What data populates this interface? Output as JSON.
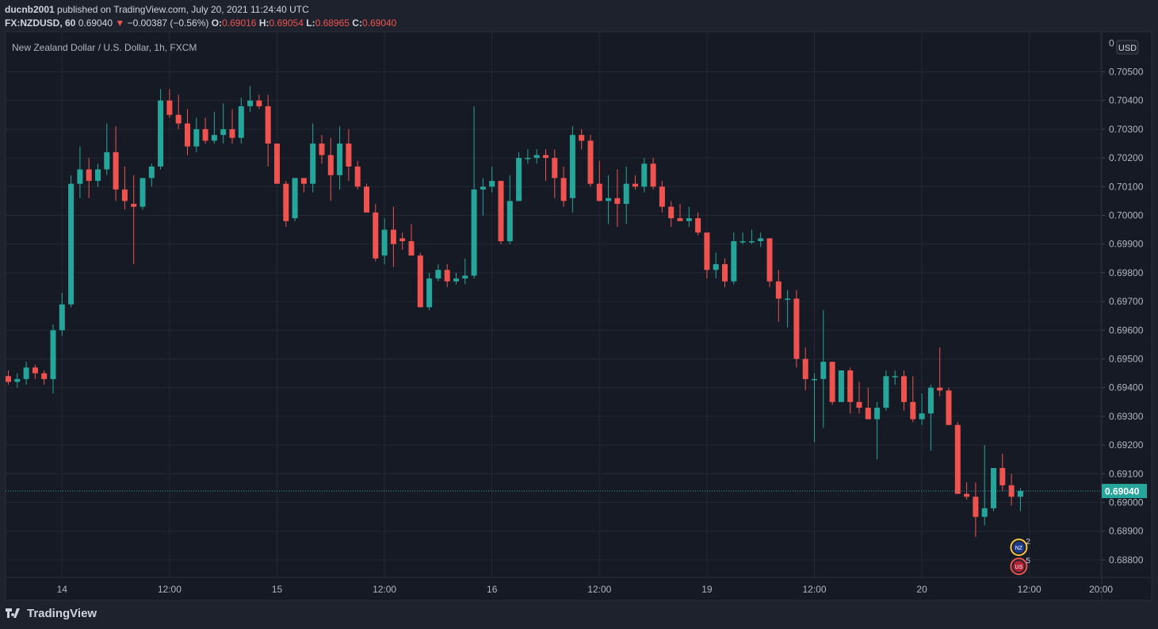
{
  "header": {
    "publisher": "ducnb2001",
    "published_text": "published on TradingView.com, July 20, 2021 11:24:40 UTC",
    "symbol": "FX:NZDUSD, 60",
    "last": "0.69040",
    "change": "−0.00387 (−0.56%)",
    "open_label": "O:",
    "open": "0.69016",
    "high_label": "H:",
    "high": "0.69054",
    "low_label": "L:",
    "low": "0.68965",
    "close_label": "C:",
    "close": "0.69040"
  },
  "brand": "TradingView",
  "chart_data": {
    "type": "candlestick",
    "title": "New Zealand Dollar / U.S. Dollar, 1h, FXCM",
    "currency": "USD",
    "current_price": 0.6904,
    "current_price_label": "0.69040",
    "y_range": [
      0.6875,
      0.7066
    ],
    "y_ticks": [
      "0.68800",
      "0.68900",
      "0.69000",
      "0.69100",
      "0.69200",
      "0.69300",
      "0.69400",
      "0.69500",
      "0.69600",
      "0.69700",
      "0.69800",
      "0.69900",
      "0.70000",
      "0.70100",
      "0.70200",
      "0.70300",
      "0.70400",
      "0.70500"
    ],
    "top_tick": "0",
    "x_ticks": [
      {
        "i": 6,
        "label": "14"
      },
      {
        "i": 18,
        "label": "12:00"
      },
      {
        "i": 30,
        "label": "15"
      },
      {
        "i": 42,
        "label": "12:00"
      },
      {
        "i": 54,
        "label": "16"
      },
      {
        "i": 66,
        "label": "12:00"
      },
      {
        "i": 78,
        "label": "19"
      },
      {
        "i": 90,
        "label": "12:00"
      },
      {
        "i": 102,
        "label": "20"
      },
      {
        "i": 114,
        "label": "12:00"
      },
      {
        "i": 122,
        "label": "20:00"
      }
    ],
    "x_bars_visible": 124,
    "grid": true,
    "up_color": "#26a69a",
    "down_color": "#ef5350",
    "candles": [
      [
        0.6944,
        0.6946,
        0.6941,
        0.6942
      ],
      [
        0.6942,
        0.6945,
        0.694,
        0.6943
      ],
      [
        0.6943,
        0.6949,
        0.6941,
        0.6947
      ],
      [
        0.6947,
        0.6948,
        0.6943,
        0.6945
      ],
      [
        0.6945,
        0.6946,
        0.6941,
        0.6943
      ],
      [
        0.6943,
        0.6962,
        0.6938,
        0.696
      ],
      [
        0.696,
        0.6973,
        0.6958,
        0.6969
      ],
      [
        0.6969,
        0.7014,
        0.6968,
        0.7011
      ],
      [
        0.7011,
        0.7024,
        0.7006,
        0.7016
      ],
      [
        0.7016,
        0.702,
        0.7006,
        0.7012
      ],
      [
        0.7012,
        0.7018,
        0.701,
        0.7016
      ],
      [
        0.7016,
        0.7032,
        0.7014,
        0.7022
      ],
      [
        0.7022,
        0.7031,
        0.7005,
        0.7009
      ],
      [
        0.7009,
        0.7017,
        0.7002,
        0.7005
      ],
      [
        0.7004,
        0.7014,
        0.6983,
        0.7003
      ],
      [
        0.7003,
        0.7013,
        0.7002,
        0.7013
      ],
      [
        0.7013,
        0.7018,
        0.701,
        0.7017
      ],
      [
        0.7017,
        0.7044,
        0.7016,
        0.704
      ],
      [
        0.704,
        0.7044,
        0.7034,
        0.7035
      ],
      [
        0.7035,
        0.7042,
        0.703,
        0.7032
      ],
      [
        0.7032,
        0.7037,
        0.7021,
        0.7024
      ],
      [
        0.7024,
        0.7034,
        0.7022,
        0.703
      ],
      [
        0.703,
        0.7034,
        0.7025,
        0.7026
      ],
      [
        0.7026,
        0.7036,
        0.7025,
        0.7028
      ],
      [
        0.7028,
        0.7039,
        0.7025,
        0.703
      ],
      [
        0.703,
        0.7037,
        0.7025,
        0.7027
      ],
      [
        0.7027,
        0.7041,
        0.7025,
        0.7038
      ],
      [
        0.7038,
        0.7045,
        0.7036,
        0.704
      ],
      [
        0.704,
        0.7042,
        0.7037,
        0.7038
      ],
      [
        0.7038,
        0.7042,
        0.7017,
        0.7025
      ],
      [
        0.7025,
        0.7025,
        0.7012,
        0.7011
      ],
      [
        0.7011,
        0.7012,
        0.6996,
        0.6998
      ],
      [
        0.6999,
        0.7013,
        0.6998,
        0.7013
      ],
      [
        0.7013,
        0.7013,
        0.7008,
        0.7011
      ],
      [
        0.7011,
        0.7032,
        0.7008,
        0.7025
      ],
      [
        0.7025,
        0.7028,
        0.7018,
        0.7021
      ],
      [
        0.7021,
        0.7027,
        0.7005,
        0.7014
      ],
      [
        0.7014,
        0.7031,
        0.7009,
        0.7025
      ],
      [
        0.7025,
        0.703,
        0.7012,
        0.7017
      ],
      [
        0.7017,
        0.7019,
        0.7009,
        0.701
      ],
      [
        0.701,
        0.7011,
        0.7002,
        0.7001
      ],
      [
        0.7001,
        0.7004,
        0.6984,
        0.6985
      ],
      [
        0.6986,
        0.6999,
        0.6983,
        0.6995
      ],
      [
        0.6995,
        0.7003,
        0.6982,
        0.699
      ],
      [
        0.6992,
        0.6994,
        0.6988,
        0.6991
      ],
      [
        0.6991,
        0.6997,
        0.6986,
        0.6986
      ],
      [
        0.6986,
        0.6987,
        0.6968,
        0.6968
      ],
      [
        0.6968,
        0.698,
        0.6967,
        0.6978
      ],
      [
        0.6978,
        0.6983,
        0.6977,
        0.6981
      ],
      [
        0.6981,
        0.6983,
        0.6975,
        0.6977
      ],
      [
        0.6977,
        0.698,
        0.6976,
        0.6978
      ],
      [
        0.6978,
        0.6985,
        0.6976,
        0.6979
      ],
      [
        0.6979,
        0.7038,
        0.6978,
        0.7009
      ],
      [
        0.7009,
        0.7013,
        0.7,
        0.701
      ],
      [
        0.701,
        0.7017,
        0.7008,
        0.7012
      ],
      [
        0.7012,
        0.7012,
        0.699,
        0.6991
      ],
      [
        0.6991,
        0.7014,
        0.699,
        0.7005
      ],
      [
        0.7005,
        0.7022,
        0.7005,
        0.702
      ],
      [
        0.702,
        0.7023,
        0.7018,
        0.702
      ],
      [
        0.702,
        0.7023,
        0.7018,
        0.7021
      ],
      [
        0.7021,
        0.7023,
        0.7012,
        0.702
      ],
      [
        0.702,
        0.7023,
        0.7006,
        0.7013
      ],
      [
        0.7013,
        0.7017,
        0.7003,
        0.7005
      ],
      [
        0.7006,
        0.7031,
        0.7001,
        0.7028
      ],
      [
        0.7028,
        0.703,
        0.7023,
        0.7026
      ],
      [
        0.7026,
        0.7028,
        0.701,
        0.7011
      ],
      [
        0.7011,
        0.7019,
        0.7005,
        0.7005
      ],
      [
        0.7005,
        0.7014,
        0.6997,
        0.7006
      ],
      [
        0.7006,
        0.7016,
        0.6996,
        0.7004
      ],
      [
        0.7004,
        0.7017,
        0.6997,
        0.7011
      ],
      [
        0.7011,
        0.7014,
        0.7009,
        0.701
      ],
      [
        0.701,
        0.702,
        0.7008,
        0.7018
      ],
      [
        0.7018,
        0.702,
        0.7009,
        0.701
      ],
      [
        0.701,
        0.7012,
        0.7001,
        0.7003
      ],
      [
        0.7003,
        0.7005,
        0.6996,
        0.6999
      ],
      [
        0.6999,
        0.7004,
        0.6998,
        0.6998
      ],
      [
        0.6998,
        0.7003,
        0.6996,
        0.6999
      ],
      [
        0.6999,
        0.7001,
        0.6993,
        0.6994
      ],
      [
        0.6994,
        0.6994,
        0.6978,
        0.6981
      ],
      [
        0.6981,
        0.6987,
        0.6978,
        0.6983
      ],
      [
        0.6983,
        0.6985,
        0.6975,
        0.6977
      ],
      [
        0.6977,
        0.6994,
        0.6976,
        0.6991
      ],
      [
        0.6991,
        0.6994,
        0.699,
        0.6991
      ],
      [
        0.6991,
        0.6995,
        0.699,
        0.6991
      ],
      [
        0.6991,
        0.6994,
        0.6989,
        0.6992
      ],
      [
        0.6992,
        0.6992,
        0.6975,
        0.6977
      ],
      [
        0.6977,
        0.6981,
        0.6963,
        0.6971
      ],
      [
        0.6971,
        0.6974,
        0.6961,
        0.6971
      ],
      [
        0.6971,
        0.6974,
        0.6947,
        0.695
      ],
      [
        0.695,
        0.6954,
        0.6939,
        0.6943
      ],
      [
        0.6943,
        0.6945,
        0.6921,
        0.6943
      ],
      [
        0.6943,
        0.6967,
        0.6926,
        0.6949
      ],
      [
        0.6949,
        0.6949,
        0.6934,
        0.6935
      ],
      [
        0.6935,
        0.6946,
        0.6935,
        0.6946
      ],
      [
        0.6946,
        0.6947,
        0.6931,
        0.6935
      ],
      [
        0.6935,
        0.6942,
        0.6931,
        0.6933
      ],
      [
        0.6933,
        0.694,
        0.6929,
        0.6929
      ],
      [
        0.6929,
        0.6935,
        0.6915,
        0.6933
      ],
      [
        0.6933,
        0.6946,
        0.6932,
        0.6944
      ],
      [
        0.6944,
        0.6946,
        0.6941,
        0.6944
      ],
      [
        0.6944,
        0.6946,
        0.6932,
        0.6935
      ],
      [
        0.6935,
        0.6944,
        0.6928,
        0.6929
      ],
      [
        0.6929,
        0.6938,
        0.6927,
        0.6931
      ],
      [
        0.6931,
        0.6941,
        0.6918,
        0.694
      ],
      [
        0.694,
        0.6954,
        0.6937,
        0.6939
      ],
      [
        0.6939,
        0.694,
        0.6927,
        0.6927
      ],
      [
        0.6927,
        0.6928,
        0.6903,
        0.6903
      ],
      [
        0.6903,
        0.6907,
        0.6901,
        0.6902
      ],
      [
        0.6902,
        0.6907,
        0.6888,
        0.6895
      ],
      [
        0.6895,
        0.692,
        0.6892,
        0.6898
      ],
      [
        0.6898,
        0.6912,
        0.6897,
        0.6912
      ],
      [
        0.6912,
        0.6917,
        0.6904,
        0.6906
      ],
      [
        0.6906,
        0.691,
        0.6899,
        0.6902
      ],
      [
        0.6902,
        0.6905,
        0.6897,
        0.6904
      ]
    ],
    "events": [
      {
        "i": 113,
        "count": "2",
        "flag": "NZ"
      },
      {
        "i": 113,
        "count": "5",
        "flag": "US"
      }
    ]
  }
}
